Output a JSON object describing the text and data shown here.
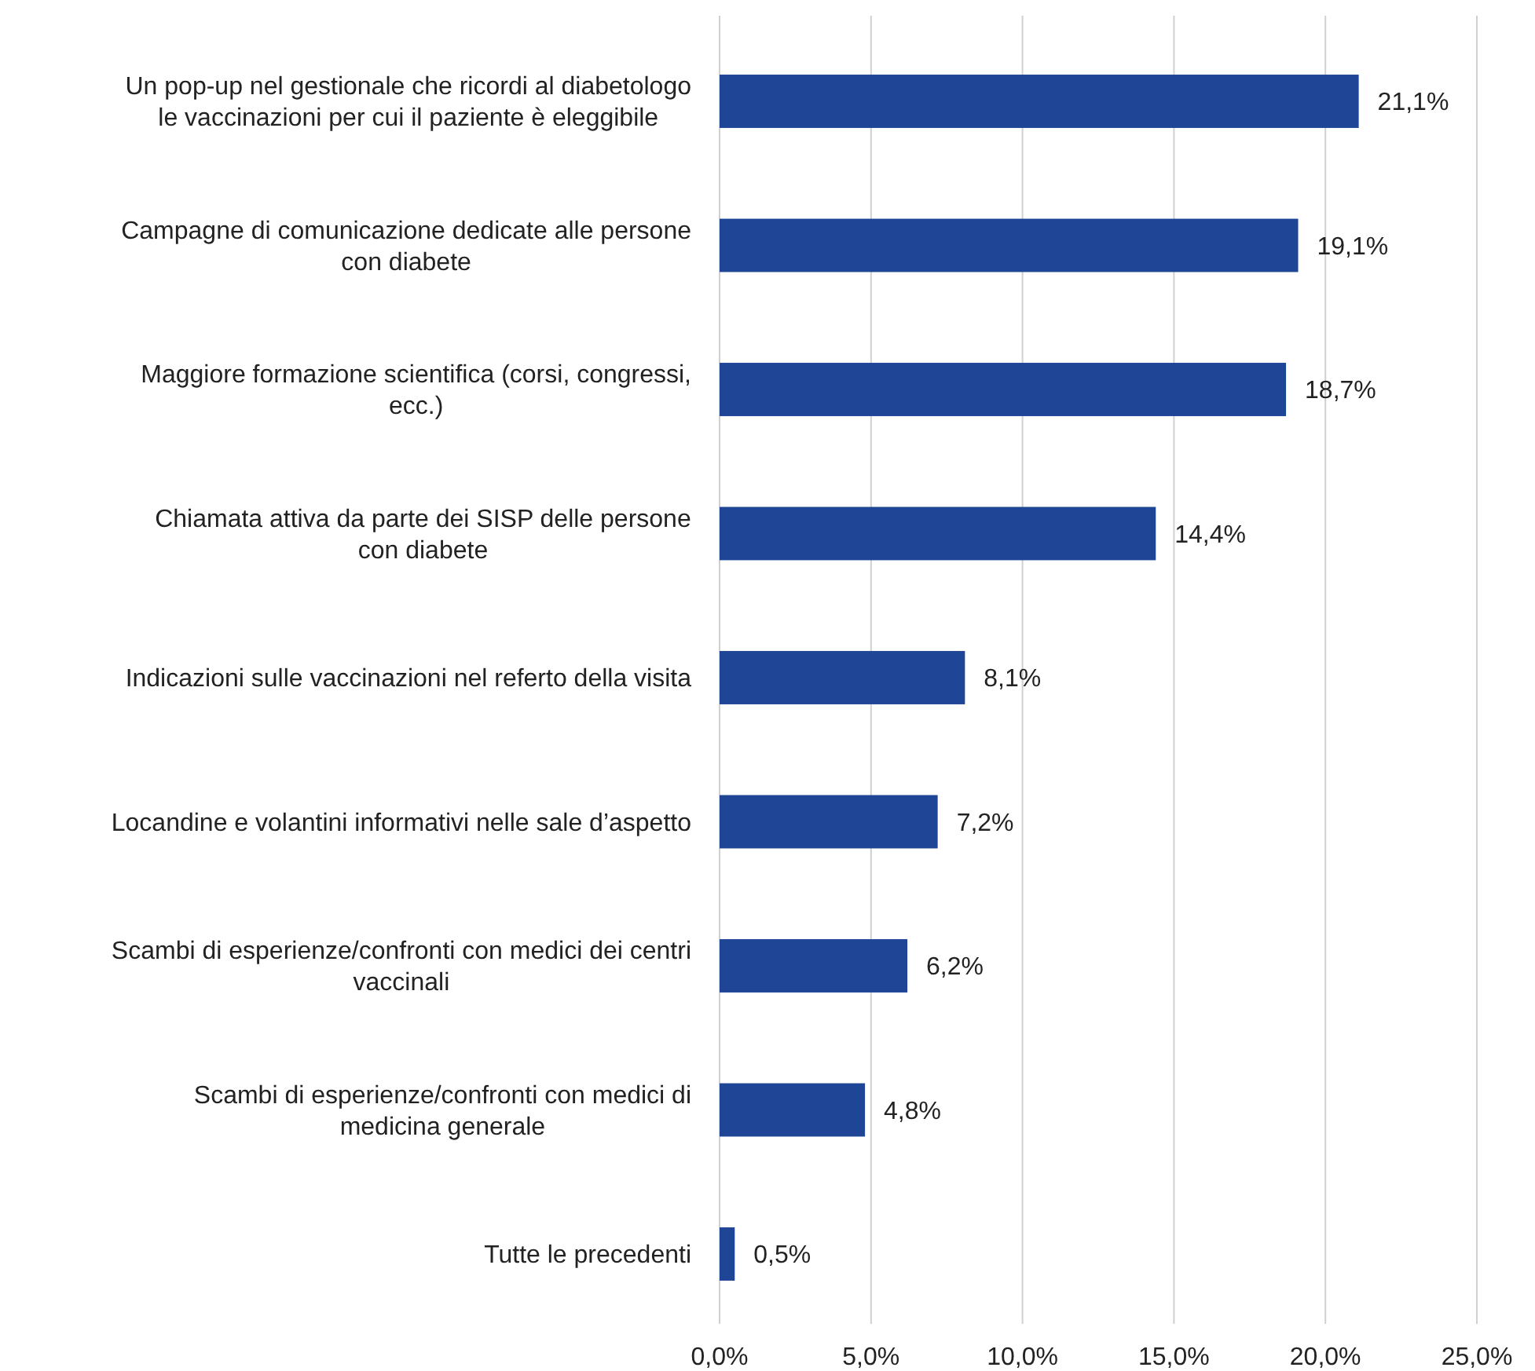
{
  "chart_data": {
    "type": "bar",
    "orientation": "horizontal",
    "categories": [
      "Un pop-up nel gestionale che ricordi al diabetologo le vaccinazioni per cui il paziente è eleggibile",
      "Campagne di comunicazione dedicate alle persone con diabete",
      "Maggiore formazione scientifica (corsi, congressi, ecc.)",
      "Chiamata attiva da parte dei SISP delle persone con diabete",
      "Indicazioni sulle vaccinazioni nel referto della visita",
      "Locandine e volantini informativi nelle sale d’aspetto",
      "Scambi di esperienze/confronti con medici dei centri vaccinali",
      "Scambi di esperienze/confronti con medici di medicina generale",
      "Tutte le precedenti"
    ],
    "values": [
      21.1,
      19.1,
      18.7,
      14.4,
      8.1,
      7.2,
      6.2,
      4.8,
      0.5
    ],
    "value_labels": [
      "21,1%",
      "19,1%",
      "18,7%",
      "14,4%",
      "8,1%",
      "7,2%",
      "6,2%",
      "4,8%",
      "0,5%"
    ],
    "color": "#1f4597",
    "xlim": [
      0,
      25
    ],
    "xticks": [
      {
        "value": 0,
        "label": "0,0%"
      },
      {
        "value": 5,
        "label": "5,0%"
      },
      {
        "value": 10,
        "label": "10,0%"
      },
      {
        "value": 15,
        "label": "15,0%"
      },
      {
        "value": 20,
        "label": "20,0%"
      },
      {
        "value": 25,
        "label": "25,0%"
      }
    ],
    "grid": "x"
  }
}
